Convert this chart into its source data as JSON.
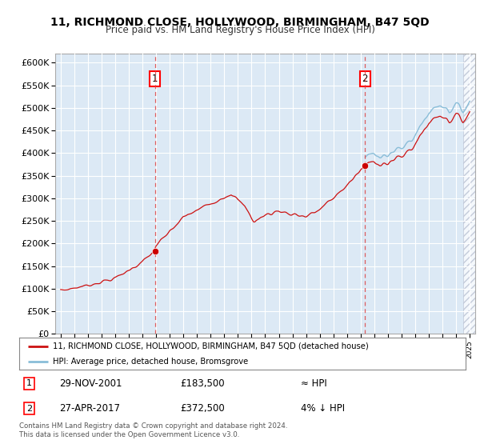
{
  "title": "11, RICHMOND CLOSE, HOLLYWOOD, BIRMINGHAM, B47 5QD",
  "subtitle": "Price paid vs. HM Land Registry's House Price Index (HPI)",
  "legend_line1": "11, RICHMOND CLOSE, HOLLYWOOD, BIRMINGHAM, B47 5QD (detached house)",
  "legend_line2": "HPI: Average price, detached house, Bromsgrove",
  "footnote": "Contains HM Land Registry data © Crown copyright and database right 2024.\nThis data is licensed under the Open Government Licence v3.0.",
  "sale1_date": "29-NOV-2001",
  "sale1_price": 183500,
  "sale1_label": "≈ HPI",
  "sale2_date": "27-APR-2017",
  "sale2_price": 372500,
  "sale2_label": "4% ↓ HPI",
  "sale1_x": 2001.91,
  "sale2_x": 2017.32,
  "ylim_min": 0,
  "ylim_max": 620000,
  "xmin": 1994.6,
  "xmax": 2025.4,
  "background_color": "#dce9f5",
  "hpi_line_color": "#89bdd8",
  "price_line_color": "#cc1111",
  "sale_marker_color": "#cc0000",
  "vline_color": "#dd4444",
  "grid_color": "#ffffff",
  "hatch_color": "#b0b8cc"
}
